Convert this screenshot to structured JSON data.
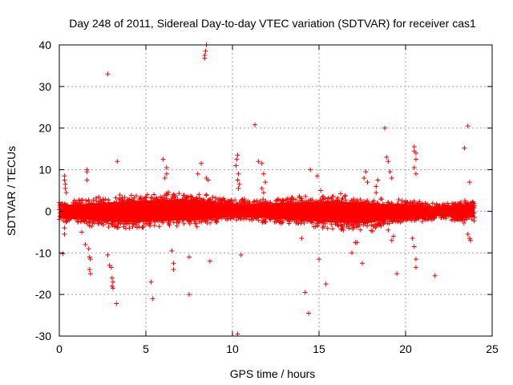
{
  "chart_data": {
    "type": "scatter",
    "title": "Day 248 of 2011, Sidereal Day-to-day VTEC variation (SDTVAR) for receiver cas1",
    "xlabel": "GPS time / hours",
    "ylabel": "SDTVAR / TECUs",
    "xlim": [
      0,
      25
    ],
    "ylim": [
      -30,
      40
    ],
    "xticks": [
      0,
      5,
      10,
      15,
      20,
      25
    ],
    "yticks": [
      -30,
      -20,
      -10,
      0,
      10,
      20,
      30,
      40
    ],
    "grid": true,
    "marker": "+",
    "series": [
      {
        "name": "SDTVAR",
        "color": "#ff0000",
        "dense_band": {
          "x_start": 0.0,
          "x_end": 24.0,
          "upper_envelope": [
            [
              0.0,
              2.5
            ],
            [
              2.0,
              3.5
            ],
            [
              4.0,
              4.5
            ],
            [
              6.0,
              5.0
            ],
            [
              8.0,
              5.0
            ],
            [
              9.0,
              4.0
            ],
            [
              10.0,
              3.0
            ],
            [
              12.0,
              3.5
            ],
            [
              14.0,
              4.0
            ],
            [
              16.0,
              4.5
            ],
            [
              18.0,
              3.5
            ],
            [
              19.0,
              3.0
            ],
            [
              20.0,
              3.0
            ],
            [
              22.0,
              2.0
            ],
            [
              23.5,
              3.0
            ],
            [
              24.0,
              2.5
            ]
          ],
          "lower_envelope": [
            [
              0.0,
              -3.0
            ],
            [
              2.0,
              -4.0
            ],
            [
              4.0,
              -5.0
            ],
            [
              6.0,
              -4.0
            ],
            [
              8.0,
              -4.0
            ],
            [
              9.0,
              -3.0
            ],
            [
              10.0,
              -2.5
            ],
            [
              12.0,
              -3.0
            ],
            [
              14.0,
              -4.0
            ],
            [
              16.0,
              -5.0
            ],
            [
              18.0,
              -5.0
            ],
            [
              19.0,
              -3.5
            ],
            [
              20.0,
              -3.0
            ],
            [
              22.0,
              -2.0
            ],
            [
              23.5,
              -3.0
            ],
            [
              24.0,
              -2.5
            ]
          ]
        },
        "points": [
          [
            0.3,
            8.5
          ],
          [
            0.3,
            7.5
          ],
          [
            0.35,
            6.5
          ],
          [
            0.35,
            5.5
          ],
          [
            0.4,
            4.5
          ],
          [
            0.3,
            -4.0
          ],
          [
            0.3,
            -5.5
          ],
          [
            0.2,
            -10.2
          ],
          [
            1.3,
            -5.0
          ],
          [
            1.5,
            -8.0
          ],
          [
            1.7,
            -9.0
          ],
          [
            1.75,
            -11.0
          ],
          [
            1.8,
            -11.5
          ],
          [
            1.75,
            -14.0
          ],
          [
            1.8,
            -15.0
          ],
          [
            1.6,
            7.5
          ],
          [
            1.6,
            9.5
          ],
          [
            1.6,
            10.0
          ],
          [
            2.8,
            33.0
          ],
          [
            2.8,
            -10.5
          ],
          [
            2.9,
            -13.0
          ],
          [
            3.0,
            -13.5
          ],
          [
            3.05,
            -16.0
          ],
          [
            3.1,
            -17.0
          ],
          [
            3.05,
            -18.0
          ],
          [
            3.1,
            -18.5
          ],
          [
            3.3,
            -22.2
          ],
          [
            3.35,
            12.0
          ],
          [
            5.3,
            -17.0
          ],
          [
            5.4,
            -21.0
          ],
          [
            6.0,
            12.5
          ],
          [
            6.2,
            10.5
          ],
          [
            6.2,
            9.0
          ],
          [
            6.1,
            8.0
          ],
          [
            6.5,
            -9.5
          ],
          [
            6.6,
            -12.5
          ],
          [
            6.6,
            -14.0
          ],
          [
            7.5,
            -11.0
          ],
          [
            7.5,
            -20.0
          ],
          [
            8.0,
            9.0
          ],
          [
            8.2,
            11.5
          ],
          [
            8.4,
            36.8
          ],
          [
            8.4,
            37.5
          ],
          [
            8.45,
            38.5
          ],
          [
            8.5,
            40.0
          ],
          [
            8.5,
            8.0
          ],
          [
            8.6,
            7.5
          ],
          [
            8.7,
            -12.0
          ],
          [
            10.2,
            11.0
          ],
          [
            10.3,
            13.5
          ],
          [
            10.25,
            12.5
          ],
          [
            10.35,
            9.0
          ],
          [
            10.3,
            7.5
          ],
          [
            10.4,
            6.5
          ],
          [
            10.35,
            5.5
          ],
          [
            10.3,
            -29.5
          ],
          [
            10.5,
            -10.5
          ],
          [
            11.3,
            20.8
          ],
          [
            11.5,
            12.0
          ],
          [
            11.7,
            11.5
          ],
          [
            11.8,
            9.0
          ],
          [
            11.7,
            5.5
          ],
          [
            11.8,
            4.5
          ],
          [
            11.9,
            7.0
          ],
          [
            14.0,
            -6.5
          ],
          [
            14.2,
            -19.5
          ],
          [
            14.4,
            -24.5
          ],
          [
            14.5,
            10.0
          ],
          [
            15.0,
            -11.5
          ],
          [
            15.4,
            -17.5
          ],
          [
            14.9,
            8.5
          ],
          [
            15.1,
            5.0
          ],
          [
            16.9,
            -10.0
          ],
          [
            17.1,
            -7.5
          ],
          [
            17.2,
            -7.5
          ],
          [
            17.5,
            -12.5
          ],
          [
            17.6,
            8.0
          ],
          [
            17.7,
            9.5
          ],
          [
            17.8,
            7.0
          ],
          [
            18.3,
            6.0
          ],
          [
            18.4,
            7.5
          ],
          [
            18.3,
            4.5
          ],
          [
            18.8,
            20.0
          ],
          [
            18.9,
            13.0
          ],
          [
            19.0,
            12.0
          ],
          [
            19.1,
            9.5
          ],
          [
            19.2,
            8.0
          ],
          [
            19.2,
            -7.0
          ],
          [
            19.5,
            -15.0
          ],
          [
            19.0,
            -4.5
          ],
          [
            19.3,
            -6.0
          ],
          [
            20.4,
            -6.5
          ],
          [
            20.5,
            -8.5
          ],
          [
            20.6,
            -11.5
          ],
          [
            20.6,
            -13.5
          ],
          [
            20.5,
            15.5
          ],
          [
            20.5,
            14.5
          ],
          [
            20.6,
            14.0
          ],
          [
            20.6,
            12.5
          ],
          [
            20.5,
            10.5
          ],
          [
            20.6,
            9.0
          ],
          [
            21.7,
            -15.5
          ],
          [
            23.4,
            15.2
          ],
          [
            23.6,
            20.5
          ],
          [
            23.7,
            7.0
          ],
          [
            23.6,
            -5.5
          ],
          [
            23.7,
            -6.5
          ],
          [
            23.75,
            -7.0
          ]
        ]
      }
    ]
  }
}
